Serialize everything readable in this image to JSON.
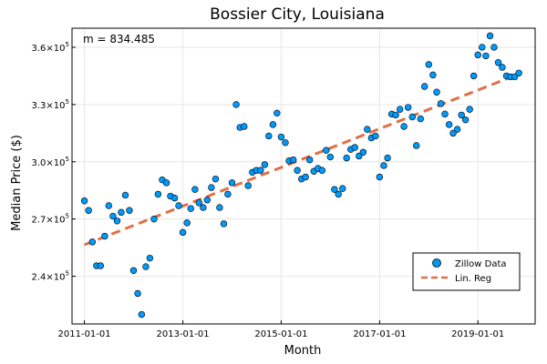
{
  "chart_data": {
    "type": "scatter",
    "title": "Bossier City, Louisiana",
    "xlabel": "Month",
    "ylabel": "Median Price ($)",
    "annotation": "m = 834.485",
    "xlim": [
      "2010-10-01",
      "2020-03-01"
    ],
    "ylim": [
      215000,
      370000
    ],
    "x_ticks": [
      "2011-01-01",
      "2013-01-01",
      "2015-01-01",
      "2017-01-01",
      "2019-01-01"
    ],
    "y_ticks": [
      {
        "value": 240000,
        "mantissa": "2.4",
        "exp": "5"
      },
      {
        "value": 270000,
        "mantissa": "2.7",
        "exp": "5"
      },
      {
        "value": 300000,
        "mantissa": "3.0",
        "exp": "5"
      },
      {
        "value": 330000,
        "mantissa": "3.3",
        "exp": "5"
      },
      {
        "value": 360000,
        "mantissa": "3.6",
        "exp": "5"
      }
    ],
    "tick_base": "10",
    "grid": true,
    "legend_position": "bottom-right",
    "series": [
      {
        "name": "Zillow Data",
        "kind": "scatter",
        "color": "#009AFA",
        "points": [
          [
            "2011-01-01",
            279500
          ],
          [
            "2011-02-01",
            274500
          ],
          [
            "2011-03-01",
            258000
          ],
          [
            "2011-04-01",
            245500
          ],
          [
            "2011-05-01",
            245500
          ],
          [
            "2011-06-01",
            261000
          ],
          [
            "2011-07-01",
            277000
          ],
          [
            "2011-08-01",
            271500
          ],
          [
            "2011-09-01",
            269000
          ],
          [
            "2011-10-01",
            273500
          ],
          [
            "2011-11-01",
            282500
          ],
          [
            "2011-12-01",
            274500
          ],
          [
            "2012-01-01",
            243000
          ],
          [
            "2012-02-01",
            231000
          ],
          [
            "2012-03-01",
            220000
          ],
          [
            "2012-04-01",
            245000
          ],
          [
            "2012-05-01",
            249500
          ],
          [
            "2012-06-01",
            270000
          ],
          [
            "2012-07-01",
            283000
          ],
          [
            "2012-08-01",
            290500
          ],
          [
            "2012-09-01",
            289000
          ],
          [
            "2012-10-01",
            282000
          ],
          [
            "2012-11-01",
            281000
          ],
          [
            "2012-12-01",
            277000
          ],
          [
            "2013-01-01",
            263000
          ],
          [
            "2013-02-01",
            268000
          ],
          [
            "2013-03-01",
            275500
          ],
          [
            "2013-04-01",
            285500
          ],
          [
            "2013-05-01",
            278500
          ],
          [
            "2013-06-01",
            276000
          ],
          [
            "2013-07-01",
            280000
          ],
          [
            "2013-08-01",
            286500
          ],
          [
            "2013-09-01",
            291000
          ],
          [
            "2013-10-01",
            276000
          ],
          [
            "2013-11-01",
            267500
          ],
          [
            "2013-12-01",
            283000
          ],
          [
            "2014-01-01",
            289000
          ],
          [
            "2014-02-01",
            330000
          ],
          [
            "2014-03-01",
            318000
          ],
          [
            "2014-04-01",
            318500
          ],
          [
            "2014-05-01",
            287500
          ],
          [
            "2014-06-01",
            294500
          ],
          [
            "2014-07-01",
            295500
          ],
          [
            "2014-08-01",
            295500
          ],
          [
            "2014-09-01",
            298500
          ],
          [
            "2014-10-01",
            313500
          ],
          [
            "2014-11-01",
            319500
          ],
          [
            "2014-12-01",
            325500
          ],
          [
            "2015-01-01",
            313000
          ],
          [
            "2015-02-01",
            310000
          ],
          [
            "2015-03-01",
            300500
          ],
          [
            "2015-04-01",
            301000
          ],
          [
            "2015-05-01",
            295500
          ],
          [
            "2015-06-01",
            291000
          ],
          [
            "2015-07-01",
            292000
          ],
          [
            "2015-08-01",
            301000
          ],
          [
            "2015-09-01",
            295000
          ],
          [
            "2015-10-01",
            296500
          ],
          [
            "2015-11-01",
            295500
          ],
          [
            "2015-12-01",
            306000
          ],
          [
            "2016-01-01",
            302500
          ],
          [
            "2016-02-01",
            285500
          ],
          [
            "2016-03-01",
            283000
          ],
          [
            "2016-04-01",
            286000
          ],
          [
            "2016-05-01",
            302000
          ],
          [
            "2016-06-01",
            306500
          ],
          [
            "2016-07-01",
            307500
          ],
          [
            "2016-08-01",
            303000
          ],
          [
            "2016-09-01",
            305000
          ],
          [
            "2016-10-01",
            317000
          ],
          [
            "2016-11-01",
            312500
          ],
          [
            "2016-12-01",
            313500
          ],
          [
            "2017-01-01",
            292000
          ],
          [
            "2017-02-01",
            298000
          ],
          [
            "2017-03-01",
            302000
          ],
          [
            "2017-04-01",
            325000
          ],
          [
            "2017-05-01",
            324500
          ],
          [
            "2017-06-01",
            327500
          ],
          [
            "2017-07-01",
            318500
          ],
          [
            "2017-08-01",
            328500
          ],
          [
            "2017-09-01",
            323500
          ],
          [
            "2017-10-01",
            308500
          ],
          [
            "2017-11-01",
            322500
          ],
          [
            "2017-12-01",
            339500
          ],
          [
            "2018-01-01",
            351000
          ],
          [
            "2018-02-01",
            345500
          ],
          [
            "2018-03-01",
            336500
          ],
          [
            "2018-04-01",
            330500
          ],
          [
            "2018-05-01",
            325000
          ],
          [
            "2018-06-01",
            319500
          ],
          [
            "2018-07-01",
            315000
          ],
          [
            "2018-08-01",
            317000
          ],
          [
            "2018-09-01",
            324500
          ],
          [
            "2018-10-01",
            322000
          ],
          [
            "2018-11-01",
            327500
          ],
          [
            "2018-12-01",
            345000
          ],
          [
            "2019-01-01",
            356000
          ],
          [
            "2019-02-01",
            360000
          ],
          [
            "2019-03-01",
            355500
          ],
          [
            "2019-04-01",
            366000
          ],
          [
            "2019-05-01",
            360000
          ],
          [
            "2019-06-01",
            352000
          ],
          [
            "2019-07-01",
            349500
          ],
          [
            "2019-08-01",
            345000
          ],
          [
            "2019-09-01",
            344500
          ],
          [
            "2019-10-01",
            344500
          ],
          [
            "2019-11-01",
            346500
          ]
        ]
      },
      {
        "name": "Lin. Reg",
        "kind": "line",
        "style": "dashed",
        "color": "#E26F46",
        "points": [
          [
            "2011-01-01",
            256500
          ],
          [
            "2019-11-01",
            346000
          ]
        ]
      }
    ]
  }
}
